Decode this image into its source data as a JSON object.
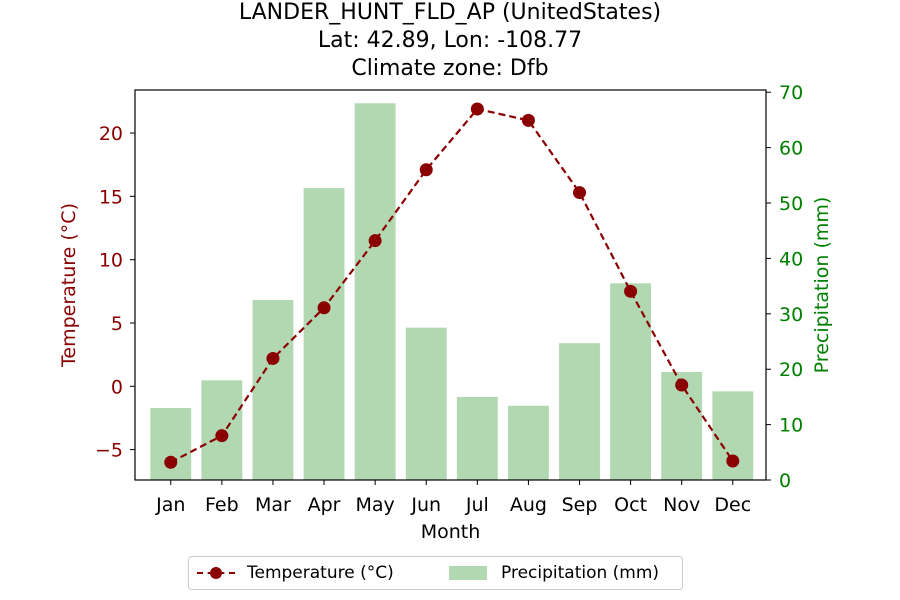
{
  "title": {
    "line1": "LANDER_HUNT_FLD_AP (UnitedStates)",
    "line2": "Lat: 42.89, Lon: -108.77",
    "line3": "Climate zone: Dfb"
  },
  "colors": {
    "temperature": "#8b0000",
    "precipitation_bar": "#b2d8b2",
    "precipitation_axis": "#008000"
  },
  "legend": {
    "temperature_label": "Temperature (°C)",
    "precipitation_label": "Precipitation (mm)"
  },
  "chart_data": {
    "type": "bar",
    "categories": [
      "Jan",
      "Feb",
      "Mar",
      "Apr",
      "May",
      "Jun",
      "Jul",
      "Aug",
      "Sep",
      "Oct",
      "Nov",
      "Dec"
    ],
    "xlabel": "Month",
    "series": [
      {
        "name": "Temperature (°C)",
        "type": "line",
        "axis": "left",
        "values": [
          -6.0,
          -3.9,
          2.2,
          6.2,
          11.5,
          17.1,
          21.9,
          21.0,
          15.3,
          7.5,
          0.1,
          -5.9
        ]
      },
      {
        "name": "Precipitation (mm)",
        "type": "bar",
        "axis": "right",
        "values": [
          13.0,
          18.0,
          32.5,
          52.7,
          68.0,
          27.5,
          15.0,
          13.4,
          24.7,
          35.5,
          19.5,
          16.0
        ]
      }
    ],
    "y_left": {
      "label": "Temperature (°C)",
      "ylim": [
        -7.4,
        23.4
      ],
      "ticks": [
        -5,
        0,
        5,
        10,
        15,
        20
      ]
    },
    "y_right": {
      "label": "Precipitation (mm)",
      "ylim": [
        0,
        70.4
      ],
      "ticks": [
        0,
        10,
        20,
        30,
        40,
        50,
        60,
        70
      ]
    },
    "grid": false,
    "legend_position": "bottom-center"
  }
}
